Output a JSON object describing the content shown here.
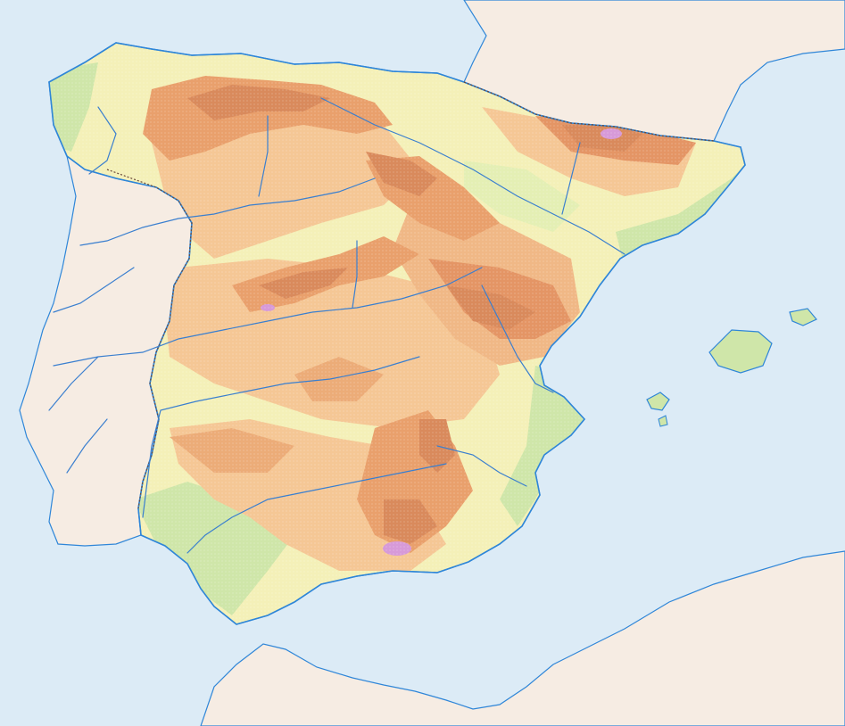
{
  "map": {
    "type": "physical-relief",
    "labels": [],
    "colors": {
      "sea": "#dcebf6",
      "foreign_land": "#f6ece3",
      "lowland": "#cfe6a9",
      "plain": "#f4f0b8",
      "plateau": "#f5c795",
      "highland": "#e9a06c",
      "mountain": "#d98a5c",
      "summit": "#d79ad8",
      "river": "#3a7fcf",
      "coast": "#2f86d8",
      "border": "#6b4a3a"
    },
    "features": {
      "rivers": [
        "river-minho",
        "river-duero",
        "river-ebro",
        "river-tajo",
        "river-guadiana",
        "river-guadalquivir",
        "river-jucar",
        "river-segura",
        "river-mondego",
        "river-tajo-lower",
        "river-guadiana-lower"
      ],
      "islands": [
        "island-mallorca",
        "island-menorca",
        "island-ibiza",
        "island-formentera"
      ],
      "neighbors": [
        "france",
        "portugal",
        "morocco",
        "algeria"
      ]
    }
  }
}
